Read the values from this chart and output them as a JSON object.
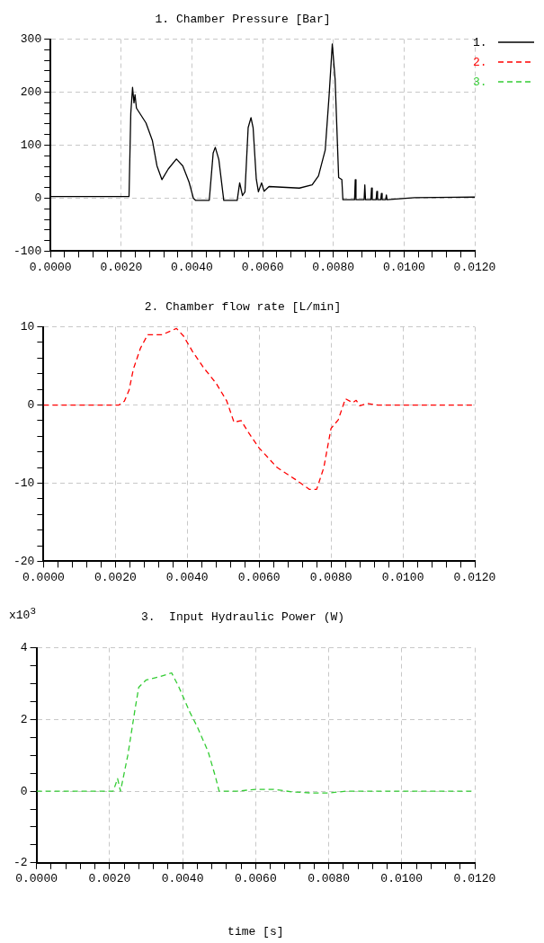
{
  "chart_data": [
    {
      "type": "line",
      "title": "1. Chamber Pressure [Bar]",
      "legend": "right",
      "grid": true,
      "xlim": [
        0,
        0.012
      ],
      "xticks": [
        {
          "value": 0,
          "label": "0.0000"
        },
        {
          "value": 0.0004,
          "label": null
        },
        {
          "value": 0.0008,
          "label": null
        },
        {
          "value": 0.0012,
          "label": null
        },
        {
          "value": 0.0016,
          "label": null
        },
        {
          "value": 0.002,
          "label": "0.0020"
        },
        {
          "value": 0.0024,
          "label": null
        },
        {
          "value": 0.0028,
          "label": null
        },
        {
          "value": 0.0032,
          "label": null
        },
        {
          "value": 0.0036,
          "label": null
        },
        {
          "value": 0.004,
          "label": "0.0040"
        },
        {
          "value": 0.0044,
          "label": null
        },
        {
          "value": 0.0048,
          "label": null
        },
        {
          "value": 0.0052,
          "label": null
        },
        {
          "value": 0.0056,
          "label": null
        },
        {
          "value": 0.006,
          "label": "0.0060"
        },
        {
          "value": 0.0064,
          "label": null
        },
        {
          "value": 0.0068,
          "label": null
        },
        {
          "value": 0.0072,
          "label": null
        },
        {
          "value": 0.0076,
          "label": null
        },
        {
          "value": 0.008,
          "label": "0.0080"
        },
        {
          "value": 0.0084,
          "label": null
        },
        {
          "value": 0.0088,
          "label": null
        },
        {
          "value": 0.0092,
          "label": null
        },
        {
          "value": 0.0096,
          "label": null
        },
        {
          "value": 0.01,
          "label": "0.0100"
        },
        {
          "value": 0.0104,
          "label": null
        },
        {
          "value": 0.0108,
          "label": null
        },
        {
          "value": 0.0112,
          "label": null
        },
        {
          "value": 0.0116,
          "label": null
        },
        {
          "value": 0.012,
          "label": "0.0120"
        }
      ],
      "ylim": [
        -100,
        300
      ],
      "yticks": [
        -100,
        {
          "value": -80,
          "label": null
        },
        {
          "value": -60,
          "label": null
        },
        {
          "value": -40,
          "label": null
        },
        {
          "value": -20,
          "label": null
        },
        0,
        {
          "value": 20,
          "label": null
        },
        {
          "value": 40,
          "label": null
        },
        {
          "value": 60,
          "label": null
        },
        {
          "value": 80,
          "label": null
        },
        100,
        {
          "value": 120,
          "label": null
        },
        {
          "value": 140,
          "label": null
        },
        {
          "value": 160,
          "label": null
        },
        {
          "value": 180,
          "label": null
        },
        200,
        {
          "value": 220,
          "label": null
        },
        {
          "value": 240,
          "label": null
        },
        {
          "value": 260,
          "label": null
        },
        {
          "value": 280,
          "label": null
        },
        300
      ],
      "x": [
        0,
        0.0021,
        0.00222,
        0.00227,
        0.00232,
        0.00236,
        0.00239,
        0.00243,
        0.0027,
        0.00288,
        0.00301,
        0.00315,
        0.00333,
        0.00356,
        0.00374,
        0.00392,
        0.00404,
        0.0041,
        0.00449,
        0.0046,
        0.00466,
        0.00476,
        0.0049,
        0.00528,
        0.00535,
        0.00543,
        0.0055,
        0.00559,
        0.00567,
        0.00573,
        0.00582,
        0.00588,
        0.00597,
        0.00604,
        0.00618,
        0.00704,
        0.0074,
        0.00758,
        0.00777,
        0.00788,
        0.00797,
        0.00805,
        0.00815,
        0.00824,
        0.00827,
        0.0086,
        0.00862,
        0.00864,
        0.00887,
        0.00889,
        0.00891,
        0.00906,
        0.00908,
        0.0091,
        0.00921,
        0.00923,
        0.00925,
        0.00934,
        0.00936,
        0.00938,
        0.00948,
        0.0095,
        0.00952,
        0.0103,
        0.012
      ],
      "series": [
        {
          "name": "1.",
          "color": "#000000",
          "line_style": "solid",
          "values": [
            3,
            3,
            3,
            160,
            209,
            180,
            195,
            170,
            142,
            109,
            61,
            35,
            55,
            74,
            61,
            30,
            0,
            -4,
            -4,
            85,
            96,
            73,
            -4,
            -4,
            29,
            5,
            12,
            133,
            152,
            133,
            36,
            12,
            29,
            13,
            22,
            19,
            25,
            42,
            91,
            194,
            291,
            224,
            39,
            35,
            -3,
            -3,
            35,
            -3,
            -3,
            25,
            -3,
            -3,
            19,
            -3,
            -3,
            13,
            -3,
            -3,
            9,
            -3,
            -3,
            6,
            -3,
            1,
            2
          ]
        }
      ]
    },
    {
      "type": "line",
      "title": "2. Chamber flow rate [L/min]",
      "legend": "right",
      "grid": true,
      "xlim": [
        0,
        0.012
      ],
      "xticks": [
        {
          "value": 0,
          "label": "0.0000"
        },
        {
          "value": 0.0004,
          "label": null
        },
        {
          "value": 0.0008,
          "label": null
        },
        {
          "value": 0.0012,
          "label": null
        },
        {
          "value": 0.0016,
          "label": null
        },
        {
          "value": 0.002,
          "label": "0.0020"
        },
        {
          "value": 0.0024,
          "label": null
        },
        {
          "value": 0.0028,
          "label": null
        },
        {
          "value": 0.0032,
          "label": null
        },
        {
          "value": 0.0036,
          "label": null
        },
        {
          "value": 0.004,
          "label": "0.0040"
        },
        {
          "value": 0.0044,
          "label": null
        },
        {
          "value": 0.0048,
          "label": null
        },
        {
          "value": 0.0052,
          "label": null
        },
        {
          "value": 0.0056,
          "label": null
        },
        {
          "value": 0.006,
          "label": "0.0060"
        },
        {
          "value": 0.0064,
          "label": null
        },
        {
          "value": 0.0068,
          "label": null
        },
        {
          "value": 0.0072,
          "label": null
        },
        {
          "value": 0.0076,
          "label": null
        },
        {
          "value": 0.008,
          "label": "0.0080"
        },
        {
          "value": 0.0084,
          "label": null
        },
        {
          "value": 0.0088,
          "label": null
        },
        {
          "value": 0.0092,
          "label": null
        },
        {
          "value": 0.0096,
          "label": null
        },
        {
          "value": 0.01,
          "label": "0.0100"
        },
        {
          "value": 0.0104,
          "label": null
        },
        {
          "value": 0.0108,
          "label": null
        },
        {
          "value": 0.0112,
          "label": null
        },
        {
          "value": 0.0116,
          "label": null
        },
        {
          "value": 0.012,
          "label": "0.0120"
        }
      ],
      "ylim": [
        -20,
        10
      ],
      "yticks": [
        -20,
        {
          "value": -18,
          "label": null
        },
        {
          "value": -16,
          "label": null
        },
        {
          "value": -14,
          "label": null
        },
        {
          "value": -12,
          "label": null
        },
        -10,
        {
          "value": -8,
          "label": null
        },
        {
          "value": -6,
          "label": null
        },
        {
          "value": -4,
          "label": null
        },
        {
          "value": -2,
          "label": null
        },
        0,
        {
          "value": 2,
          "label": null
        },
        {
          "value": 4,
          "label": null
        },
        {
          "value": 6,
          "label": null
        },
        {
          "value": 8,
          "label": null
        },
        10
      ],
      "x": [
        0,
        0.0021,
        0.00225,
        0.00238,
        0.0025,
        0.0027,
        0.0029,
        0.0033,
        0.0037,
        0.0039,
        0.00414,
        0.00445,
        0.0048,
        0.0051,
        0.0053,
        0.0055,
        0.0057,
        0.006,
        0.0065,
        0.007,
        0.0074,
        0.0076,
        0.0078,
        0.008,
        0.0082,
        0.0084,
        0.0086,
        0.0087,
        0.0088,
        0.009,
        0.0093,
        0.012
      ],
      "series": [
        {
          "name": "2.",
          "color": "#ff0000",
          "line_style": "dashed",
          "values": [
            0,
            0,
            0.5,
            1.9,
            4.6,
            7.3,
            9,
            9,
            9.8,
            8.8,
            6.9,
            4.8,
            2.8,
            0.5,
            -2.2,
            -2,
            -3.5,
            -5.5,
            -8,
            -9.5,
            -10.8,
            -10.8,
            -8,
            -3,
            -1.9,
            0.8,
            0.3,
            0.6,
            -0.1,
            0.2,
            0,
            0
          ]
        }
      ]
    },
    {
      "type": "line",
      "title": "3.  Input Hydraulic Power (W)",
      "ylabel": "x10$^{3}$",
      "xlabel": "time [s]",
      "legend": "right",
      "grid": true,
      "xlim": [
        0,
        0.012
      ],
      "xticks": [
        {
          "value": 0,
          "label": "0.0000"
        },
        {
          "value": 0.0004,
          "label": null
        },
        {
          "value": 0.0008,
          "label": null
        },
        {
          "value": 0.0012,
          "label": null
        },
        {
          "value": 0.0016,
          "label": null
        },
        {
          "value": 0.002,
          "label": "0.0020"
        },
        {
          "value": 0.0024,
          "label": null
        },
        {
          "value": 0.0028,
          "label": null
        },
        {
          "value": 0.0032,
          "label": null
        },
        {
          "value": 0.0036,
          "label": null
        },
        {
          "value": 0.004,
          "label": "0.0040"
        },
        {
          "value": 0.0044,
          "label": null
        },
        {
          "value": 0.0048,
          "label": null
        },
        {
          "value": 0.0052,
          "label": null
        },
        {
          "value": 0.0056,
          "label": null
        },
        {
          "value": 0.006,
          "label": "0.0060"
        },
        {
          "value": 0.0064,
          "label": null
        },
        {
          "value": 0.0068,
          "label": null
        },
        {
          "value": 0.0072,
          "label": null
        },
        {
          "value": 0.0076,
          "label": null
        },
        {
          "value": 0.008,
          "label": "0.0080"
        },
        {
          "value": 0.0084,
          "label": null
        },
        {
          "value": 0.0088,
          "label": null
        },
        {
          "value": 0.0092,
          "label": null
        },
        {
          "value": 0.0096,
          "label": null
        },
        {
          "value": 0.01,
          "label": "0.0100"
        },
        {
          "value": 0.0104,
          "label": null
        },
        {
          "value": 0.0108,
          "label": null
        },
        {
          "value": 0.0112,
          "label": null
        },
        {
          "value": 0.0116,
          "label": null
        },
        {
          "value": 0.012,
          "label": "0.0120"
        }
      ],
      "ylim": [
        -2,
        4
      ],
      "yticks": [
        -2,
        {
          "value": -1.5,
          "label": null
        },
        {
          "value": -1,
          "label": null
        },
        {
          "value": -0.5,
          "label": null
        },
        0,
        {
          "value": 0.5,
          "label": null
        },
        {
          "value": 1,
          "label": null
        },
        {
          "value": 1.5,
          "label": null
        },
        2,
        {
          "value": 2.5,
          "label": null
        },
        {
          "value": 3,
          "label": null
        },
        {
          "value": 3.5,
          "label": null
        },
        4
      ],
      "x": [
        0,
        0.0021,
        0.00222,
        0.0023,
        0.0025,
        0.0027,
        0.0028,
        0.003,
        0.0034,
        0.0037,
        0.0039,
        0.0042,
        0.0044,
        0.0047,
        0.0049,
        0.005,
        0.0055,
        0.006,
        0.0065,
        0.007,
        0.0075,
        0.008,
        0.0085,
        0.012
      ],
      "series": [
        {
          "name": "3.",
          "color": "#33cc33",
          "line_style": "dashed",
          "values": [
            0,
            0,
            0.35,
            0,
            1,
            2.3,
            2.9,
            3.1,
            3.2,
            3.3,
            2.9,
            2.2,
            1.8,
            1.1,
            0.4,
            0,
            0,
            0.05,
            0.05,
            -0.02,
            -0.05,
            -0.05,
            0,
            0
          ]
        }
      ]
    }
  ]
}
